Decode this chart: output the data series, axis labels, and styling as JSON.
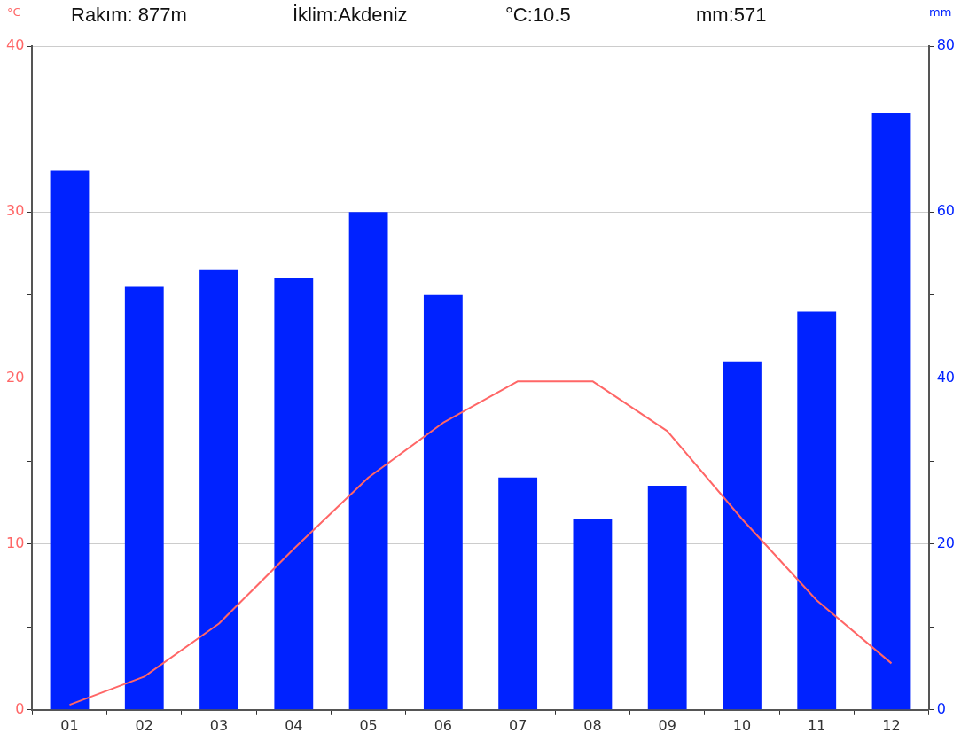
{
  "chart_data": {
    "type": "bar",
    "ylabel": "°C",
    "y2label": "mm",
    "annotations": [
      "Rakım: 877m",
      "İklim:Akdeniz",
      "°C:10.5",
      "mm:571"
    ],
    "categories": [
      "01",
      "02",
      "03",
      "04",
      "05",
      "06",
      "07",
      "08",
      "09",
      "10",
      "11",
      "12"
    ],
    "series": [
      {
        "axis": "y2",
        "color": "#0022ff",
        "values": [
          65,
          51,
          53,
          52,
          60,
          50,
          28,
          23,
          27,
          42,
          48,
          72
        ]
      },
      {
        "type": "line",
        "axis": "y",
        "color": "#ff6666",
        "values": [
          0.3,
          2.0,
          5.2,
          9.7,
          14.0,
          17.3,
          19.8,
          19.8,
          16.8,
          11.5,
          6.6,
          2.8
        ]
      }
    ],
    "ylim": [
      0,
      40
    ],
    "yticks": [
      0,
      {
        "value": 5,
        "label": null
      },
      10,
      {
        "value": 15,
        "label": null
      },
      20,
      {
        "value": 25,
        "label": null
      },
      30,
      {
        "value": 35,
        "label": null
      },
      40
    ],
    "y2lim": [
      0,
      80
    ],
    "y2ticks": [
      0,
      {
        "value": 10,
        "label": null
      },
      20,
      {
        "value": 30,
        "label": null
      },
      40,
      {
        "value": 50,
        "label": null
      },
      60,
      {
        "value": 70,
        "label": null
      },
      80
    ],
    "grid": "y",
    "legend": false,
    "marker": "none",
    "line_style": "solid"
  }
}
